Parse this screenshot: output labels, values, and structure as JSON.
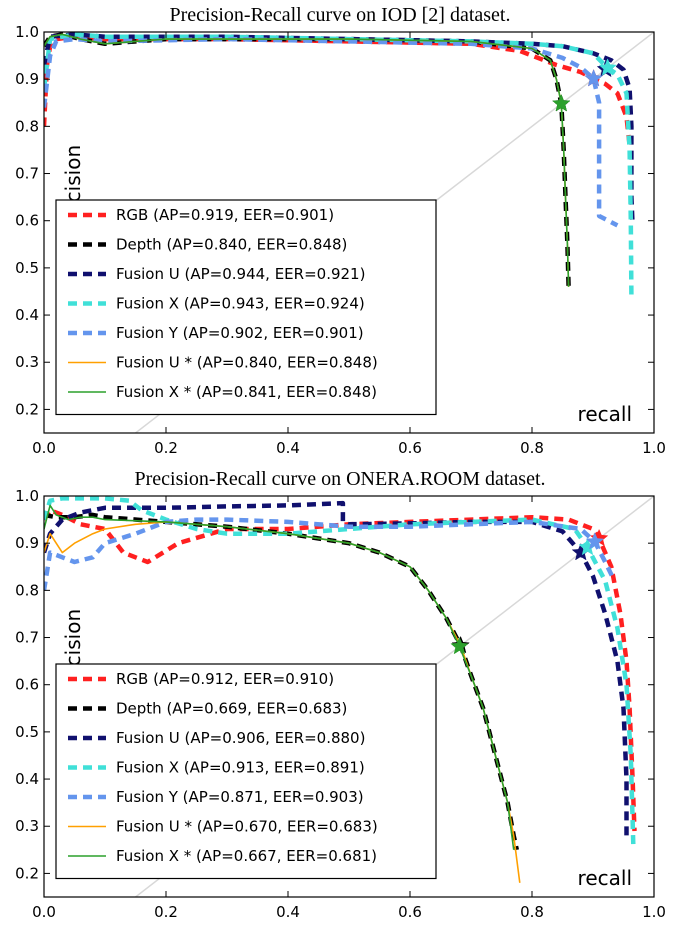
{
  "chart_data": [
    {
      "type": "line",
      "title": "Precision-Recall curve on IOD [2] dataset.",
      "xlabel": "recall",
      "ylabel": "precision",
      "xlim": [
        0.0,
        1.0
      ],
      "ylim": [
        0.15,
        1.0
      ],
      "xticks": [
        "0.0",
        "0.2",
        "0.4",
        "0.6",
        "0.8",
        "1.0"
      ],
      "yticks": [
        "0.2",
        "0.3",
        "0.4",
        "0.5",
        "0.6",
        "0.7",
        "0.8",
        "0.9",
        "1.0"
      ],
      "diagonal": true,
      "legend_position": "lower-left",
      "series": [
        {
          "name": "RGB (AP=0.919, EER=0.901)",
          "color": "#ff2020",
          "style": "dash-thick",
          "x": [
            0.0,
            0.005,
            0.01,
            0.02,
            0.05,
            0.1,
            0.3,
            0.5,
            0.7,
            0.78,
            0.84,
            0.88,
            0.901,
            0.92,
            0.94,
            0.955,
            0.96
          ],
          "y": [
            0.8,
            0.93,
            0.97,
            0.985,
            0.99,
            0.985,
            0.985,
            0.98,
            0.975,
            0.96,
            0.93,
            0.915,
            0.901,
            0.89,
            0.87,
            0.82,
            0.76
          ],
          "marker": {
            "x": 0.901,
            "y": 0.901
          }
        },
        {
          "name": "Depth (AP=0.840, EER=0.848)",
          "color": "#000000",
          "style": "dash-thick",
          "x": [
            0.0,
            0.01,
            0.03,
            0.06,
            0.1,
            0.2,
            0.3,
            0.5,
            0.7,
            0.8,
            0.83,
            0.84,
            0.848,
            0.852,
            0.855,
            0.858,
            0.86
          ],
          "y": [
            0.97,
            0.99,
            0.995,
            0.985,
            0.975,
            0.985,
            0.985,
            0.985,
            0.98,
            0.965,
            0.94,
            0.9,
            0.848,
            0.75,
            0.65,
            0.55,
            0.46
          ],
          "marker": {
            "x": 0.848,
            "y": 0.848
          }
        },
        {
          "name": "Fusion U (AP=0.944, EER=0.921)",
          "color": "#10106e",
          "style": "dash-thick",
          "x": [
            0.0,
            0.01,
            0.05,
            0.1,
            0.3,
            0.5,
            0.7,
            0.8,
            0.85,
            0.9,
            0.93,
            0.95,
            0.96,
            0.963,
            0.963,
            0.965
          ],
          "y": [
            0.93,
            0.99,
            0.995,
            0.99,
            0.99,
            0.985,
            0.98,
            0.975,
            0.97,
            0.955,
            0.94,
            0.92,
            0.88,
            0.8,
            0.65,
            0.59
          ],
          "marker": {
            "x": 0.921,
            "y": 0.921
          }
        },
        {
          "name": "Fusion X (AP=0.943, EER=0.924)",
          "color": "#40e0d8",
          "style": "dash-thick",
          "x": [
            0.0,
            0.01,
            0.05,
            0.1,
            0.3,
            0.5,
            0.7,
            0.8,
            0.85,
            0.9,
            0.924,
            0.94,
            0.955,
            0.96,
            0.962,
            0.963
          ],
          "y": [
            0.88,
            0.985,
            0.995,
            0.99,
            0.99,
            0.985,
            0.98,
            0.975,
            0.97,
            0.955,
            0.924,
            0.91,
            0.87,
            0.75,
            0.6,
            0.44
          ],
          "marker": {
            "x": 0.924,
            "y": 0.924
          }
        },
        {
          "name": "Fusion Y (AP=0.902, EER=0.901)",
          "color": "#6495ed",
          "style": "dash-thick",
          "x": [
            0.0,
            0.01,
            0.02,
            0.05,
            0.1,
            0.3,
            0.5,
            0.7,
            0.8,
            0.85,
            0.88,
            0.901,
            0.91,
            0.91,
            0.91,
            0.91,
            0.94
          ],
          "y": [
            0.84,
            0.95,
            0.98,
            0.985,
            0.98,
            0.985,
            0.98,
            0.975,
            0.965,
            0.945,
            0.925,
            0.901,
            0.85,
            0.75,
            0.65,
            0.61,
            0.59
          ],
          "marker": {
            "x": 0.901,
            "y": 0.901
          }
        },
        {
          "name": "Fusion U * (AP=0.840, EER=0.848)",
          "color": "#ffa000",
          "style": "solid",
          "x": [
            0.0,
            0.01,
            0.03,
            0.06,
            0.1,
            0.2,
            0.3,
            0.5,
            0.7,
            0.8,
            0.83,
            0.84,
            0.848,
            0.852,
            0.855,
            0.858,
            0.86
          ],
          "y": [
            0.97,
            0.99,
            0.995,
            0.985,
            0.975,
            0.985,
            0.985,
            0.985,
            0.98,
            0.965,
            0.94,
            0.9,
            0.848,
            0.75,
            0.65,
            0.55,
            0.46
          ]
        },
        {
          "name": "Fusion X * (AP=0.841, EER=0.848)",
          "color": "#2ca02c",
          "style": "solid",
          "x": [
            0.0,
            0.01,
            0.03,
            0.06,
            0.1,
            0.2,
            0.3,
            0.5,
            0.7,
            0.8,
            0.83,
            0.84,
            0.848,
            0.852,
            0.855,
            0.858,
            0.86
          ],
          "y": [
            0.97,
            0.99,
            0.995,
            0.985,
            0.975,
            0.985,
            0.985,
            0.985,
            0.98,
            0.965,
            0.94,
            0.9,
            0.848,
            0.75,
            0.65,
            0.55,
            0.46
          ],
          "marker": {
            "x": 0.848,
            "y": 0.848
          }
        }
      ]
    },
    {
      "type": "line",
      "title": "Precision-Recall curve on ONERA.ROOM dataset.",
      "xlabel": "recall",
      "ylabel": "precision",
      "xlim": [
        0.0,
        1.0
      ],
      "ylim": [
        0.15,
        1.0
      ],
      "xticks": [
        "0.0",
        "0.2",
        "0.4",
        "0.6",
        "0.8",
        "1.0"
      ],
      "yticks": [
        "0.2",
        "0.3",
        "0.4",
        "0.5",
        "0.6",
        "0.7",
        "0.8",
        "0.9",
        "1.0"
      ],
      "diagonal": true,
      "legend_position": "lower-left",
      "series": [
        {
          "name": "RGB (AP=0.912, EER=0.910)",
          "color": "#ff2020",
          "style": "dash-thick",
          "x": [
            0.0,
            0.01,
            0.03,
            0.06,
            0.1,
            0.13,
            0.17,
            0.22,
            0.3,
            0.4,
            0.5,
            0.6,
            0.7,
            0.8,
            0.86,
            0.9,
            0.91,
            0.93,
            0.945,
            0.955,
            0.96,
            0.965,
            0.968
          ],
          "y": [
            0.95,
            0.97,
            0.96,
            0.94,
            0.93,
            0.88,
            0.86,
            0.9,
            0.93,
            0.93,
            0.94,
            0.945,
            0.95,
            0.955,
            0.95,
            0.93,
            0.91,
            0.85,
            0.75,
            0.65,
            0.55,
            0.4,
            0.29
          ],
          "marker": {
            "x": 0.91,
            "y": 0.91
          }
        },
        {
          "name": "Depth (AP=0.669, EER=0.683)",
          "color": "#000000",
          "style": "dash-thick",
          "x": [
            0.0,
            0.02,
            0.05,
            0.08,
            0.1,
            0.2,
            0.3,
            0.4,
            0.5,
            0.55,
            0.6,
            0.63,
            0.66,
            0.683,
            0.7,
            0.72,
            0.74,
            0.76,
            0.77,
            0.775
          ],
          "y": [
            0.96,
            0.955,
            0.955,
            0.96,
            0.955,
            0.945,
            0.935,
            0.92,
            0.9,
            0.88,
            0.85,
            0.8,
            0.74,
            0.683,
            0.62,
            0.55,
            0.45,
            0.35,
            0.28,
            0.25
          ],
          "marker": {
            "x": 0.683,
            "y": 0.683
          }
        },
        {
          "name": "Fusion U (AP=0.906, EER=0.880)",
          "color": "#10106e",
          "style": "dash-thick",
          "x": [
            0.0,
            0.01,
            0.03,
            0.06,
            0.1,
            0.2,
            0.3,
            0.4,
            0.49,
            0.49,
            0.5,
            0.6,
            0.7,
            0.8,
            0.85,
            0.88,
            0.9,
            0.92,
            0.94,
            0.95,
            0.955,
            0.955
          ],
          "y": [
            0.88,
            0.92,
            0.95,
            0.965,
            0.975,
            0.975,
            0.978,
            0.98,
            0.985,
            0.945,
            0.94,
            0.942,
            0.945,
            0.945,
            0.925,
            0.88,
            0.83,
            0.75,
            0.65,
            0.55,
            0.4,
            0.28
          ],
          "marker": {
            "x": 0.88,
            "y": 0.88
          }
        },
        {
          "name": "Fusion X (AP=0.913, EER=0.891)",
          "color": "#40e0d8",
          "style": "dash-thick",
          "x": [
            0.0,
            0.01,
            0.03,
            0.05,
            0.1,
            0.14,
            0.16,
            0.2,
            0.25,
            0.3,
            0.4,
            0.5,
            0.6,
            0.7,
            0.8,
            0.87,
            0.891,
            0.92,
            0.94,
            0.955,
            0.962,
            0.966
          ],
          "y": [
            0.95,
            0.99,
            0.995,
            0.995,
            0.995,
            0.99,
            0.97,
            0.95,
            0.93,
            0.92,
            0.92,
            0.93,
            0.94,
            0.945,
            0.95,
            0.93,
            0.891,
            0.82,
            0.72,
            0.6,
            0.45,
            0.26
          ],
          "marker": {
            "x": 0.891,
            "y": 0.891
          }
        },
        {
          "name": "Fusion Y (AP=0.871, EER=0.903)",
          "color": "#6495ed",
          "style": "dash-thick",
          "x": [
            0.0,
            0.01,
            0.03,
            0.05,
            0.08,
            0.1,
            0.15,
            0.2,
            0.25,
            0.3,
            0.4,
            0.5,
            0.6,
            0.7,
            0.8,
            0.88,
            0.903,
            0.92,
            0.935
          ],
          "y": [
            0.8,
            0.88,
            0.87,
            0.86,
            0.87,
            0.9,
            0.92,
            0.945,
            0.95,
            0.95,
            0.945,
            0.935,
            0.935,
            0.94,
            0.945,
            0.93,
            0.903,
            0.86,
            0.82
          ],
          "marker": {
            "x": 0.903,
            "y": 0.903
          }
        },
        {
          "name": "Fusion U * (AP=0.670, EER=0.683)",
          "color": "#ffa000",
          "style": "solid",
          "x": [
            0.0,
            0.01,
            0.02,
            0.03,
            0.05,
            0.08,
            0.1,
            0.15,
            0.2,
            0.3,
            0.4,
            0.5,
            0.55,
            0.6,
            0.63,
            0.66,
            0.683,
            0.7,
            0.72,
            0.74,
            0.76,
            0.77,
            0.78
          ],
          "y": [
            0.88,
            0.92,
            0.9,
            0.88,
            0.9,
            0.92,
            0.93,
            0.94,
            0.945,
            0.935,
            0.92,
            0.9,
            0.88,
            0.85,
            0.8,
            0.74,
            0.683,
            0.62,
            0.55,
            0.45,
            0.35,
            0.28,
            0.18
          ]
        },
        {
          "name": "Fusion X * (AP=0.667, EER=0.681)",
          "color": "#2ca02c",
          "style": "solid",
          "x": [
            0.0,
            0.01,
            0.02,
            0.04,
            0.06,
            0.08,
            0.1,
            0.2,
            0.3,
            0.4,
            0.5,
            0.55,
            0.6,
            0.63,
            0.66,
            0.681,
            0.7,
            0.72,
            0.74,
            0.76,
            0.77
          ],
          "y": [
            0.93,
            0.98,
            0.96,
            0.95,
            0.955,
            0.955,
            0.95,
            0.945,
            0.935,
            0.92,
            0.9,
            0.88,
            0.85,
            0.8,
            0.74,
            0.681,
            0.62,
            0.55,
            0.45,
            0.35,
            0.25
          ],
          "marker": {
            "x": 0.681,
            "y": 0.681
          }
        }
      ]
    }
  ]
}
